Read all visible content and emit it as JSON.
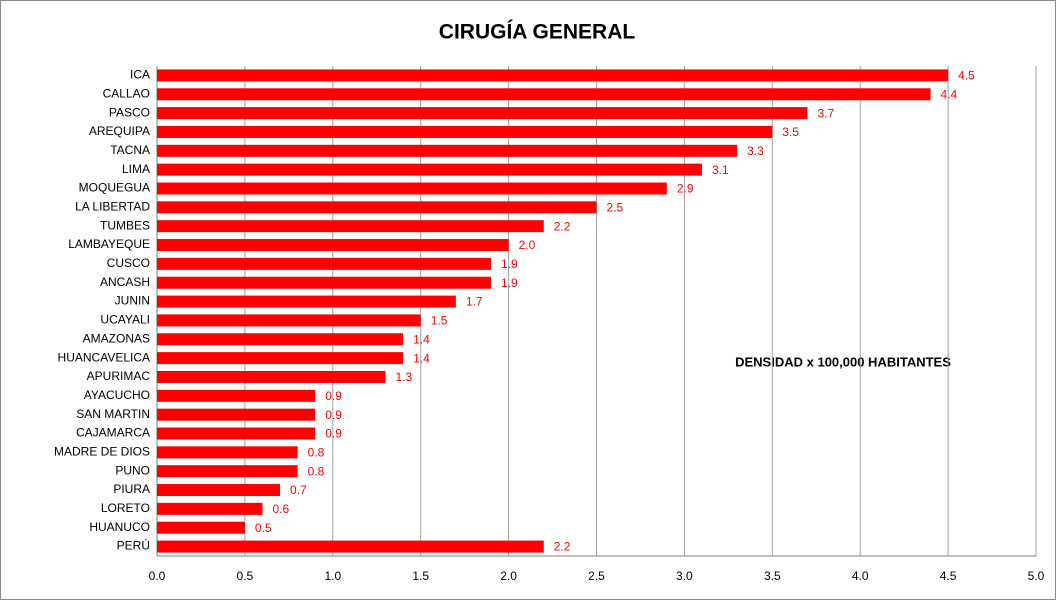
{
  "chart_data": {
    "type": "barh",
    "title": "CIRUGÍA GENERAL",
    "annotation": "DENSIDAD x 100,000 HABITANTES",
    "categories": [
      "ICA",
      "CALLAO",
      "PASCO",
      "AREQUIPA",
      "TACNA",
      "LIMA",
      "MOQUEGUA",
      "LA LIBERTAD",
      "TUMBES",
      "LAMBAYEQUE",
      "CUSCO",
      "ANCASH",
      "JUNIN",
      "UCAYALI",
      "AMAZONAS",
      "HUANCAVELICA",
      "APURIMAC",
      "AYACUCHO",
      "SAN MARTIN",
      "CAJAMARCA",
      "MADRE DE DIOS",
      "PUNO",
      "PIURA",
      "LORETO",
      "HUANUCO",
      "PERÚ"
    ],
    "values": [
      4.5,
      4.4,
      3.7,
      3.5,
      3.3,
      3.1,
      2.9,
      2.5,
      2.2,
      2,
      1.9,
      1.9,
      1.7,
      1.5,
      1.4,
      1.4,
      1.3,
      0.9,
      0.9,
      0.9,
      0.8,
      0.8,
      0.7,
      0.6,
      0.5,
      2.2
    ],
    "value_labels": [
      "4.5",
      "4.4",
      "3.7",
      "3.5",
      "3.3",
      "3.1",
      "2.9",
      "2.5",
      "2.2",
      "2.0",
      "1.9",
      "1.9",
      "1.7",
      "1.5",
      "1.4",
      "1.4",
      "1.3",
      "0.9",
      "0.9",
      "0.9",
      "0.8",
      "0.8",
      "0.7",
      "0.6",
      "0.5",
      "2.2"
    ],
    "color": "#ff0000",
    "xlim": [
      0,
      5
    ],
    "xticks": [
      {
        "value": 0,
        "label": "0.0"
      },
      0.5,
      {
        "value": 1,
        "label": "1.0"
      },
      1.5,
      {
        "value": 2,
        "label": "2.0"
      },
      2.5,
      {
        "value": 3,
        "label": "3.0"
      },
      3.5,
      {
        "value": 4,
        "label": "4.0"
      },
      4.5,
      {
        "value": 5,
        "label": "5.0"
      }
    ],
    "grid": true
  }
}
